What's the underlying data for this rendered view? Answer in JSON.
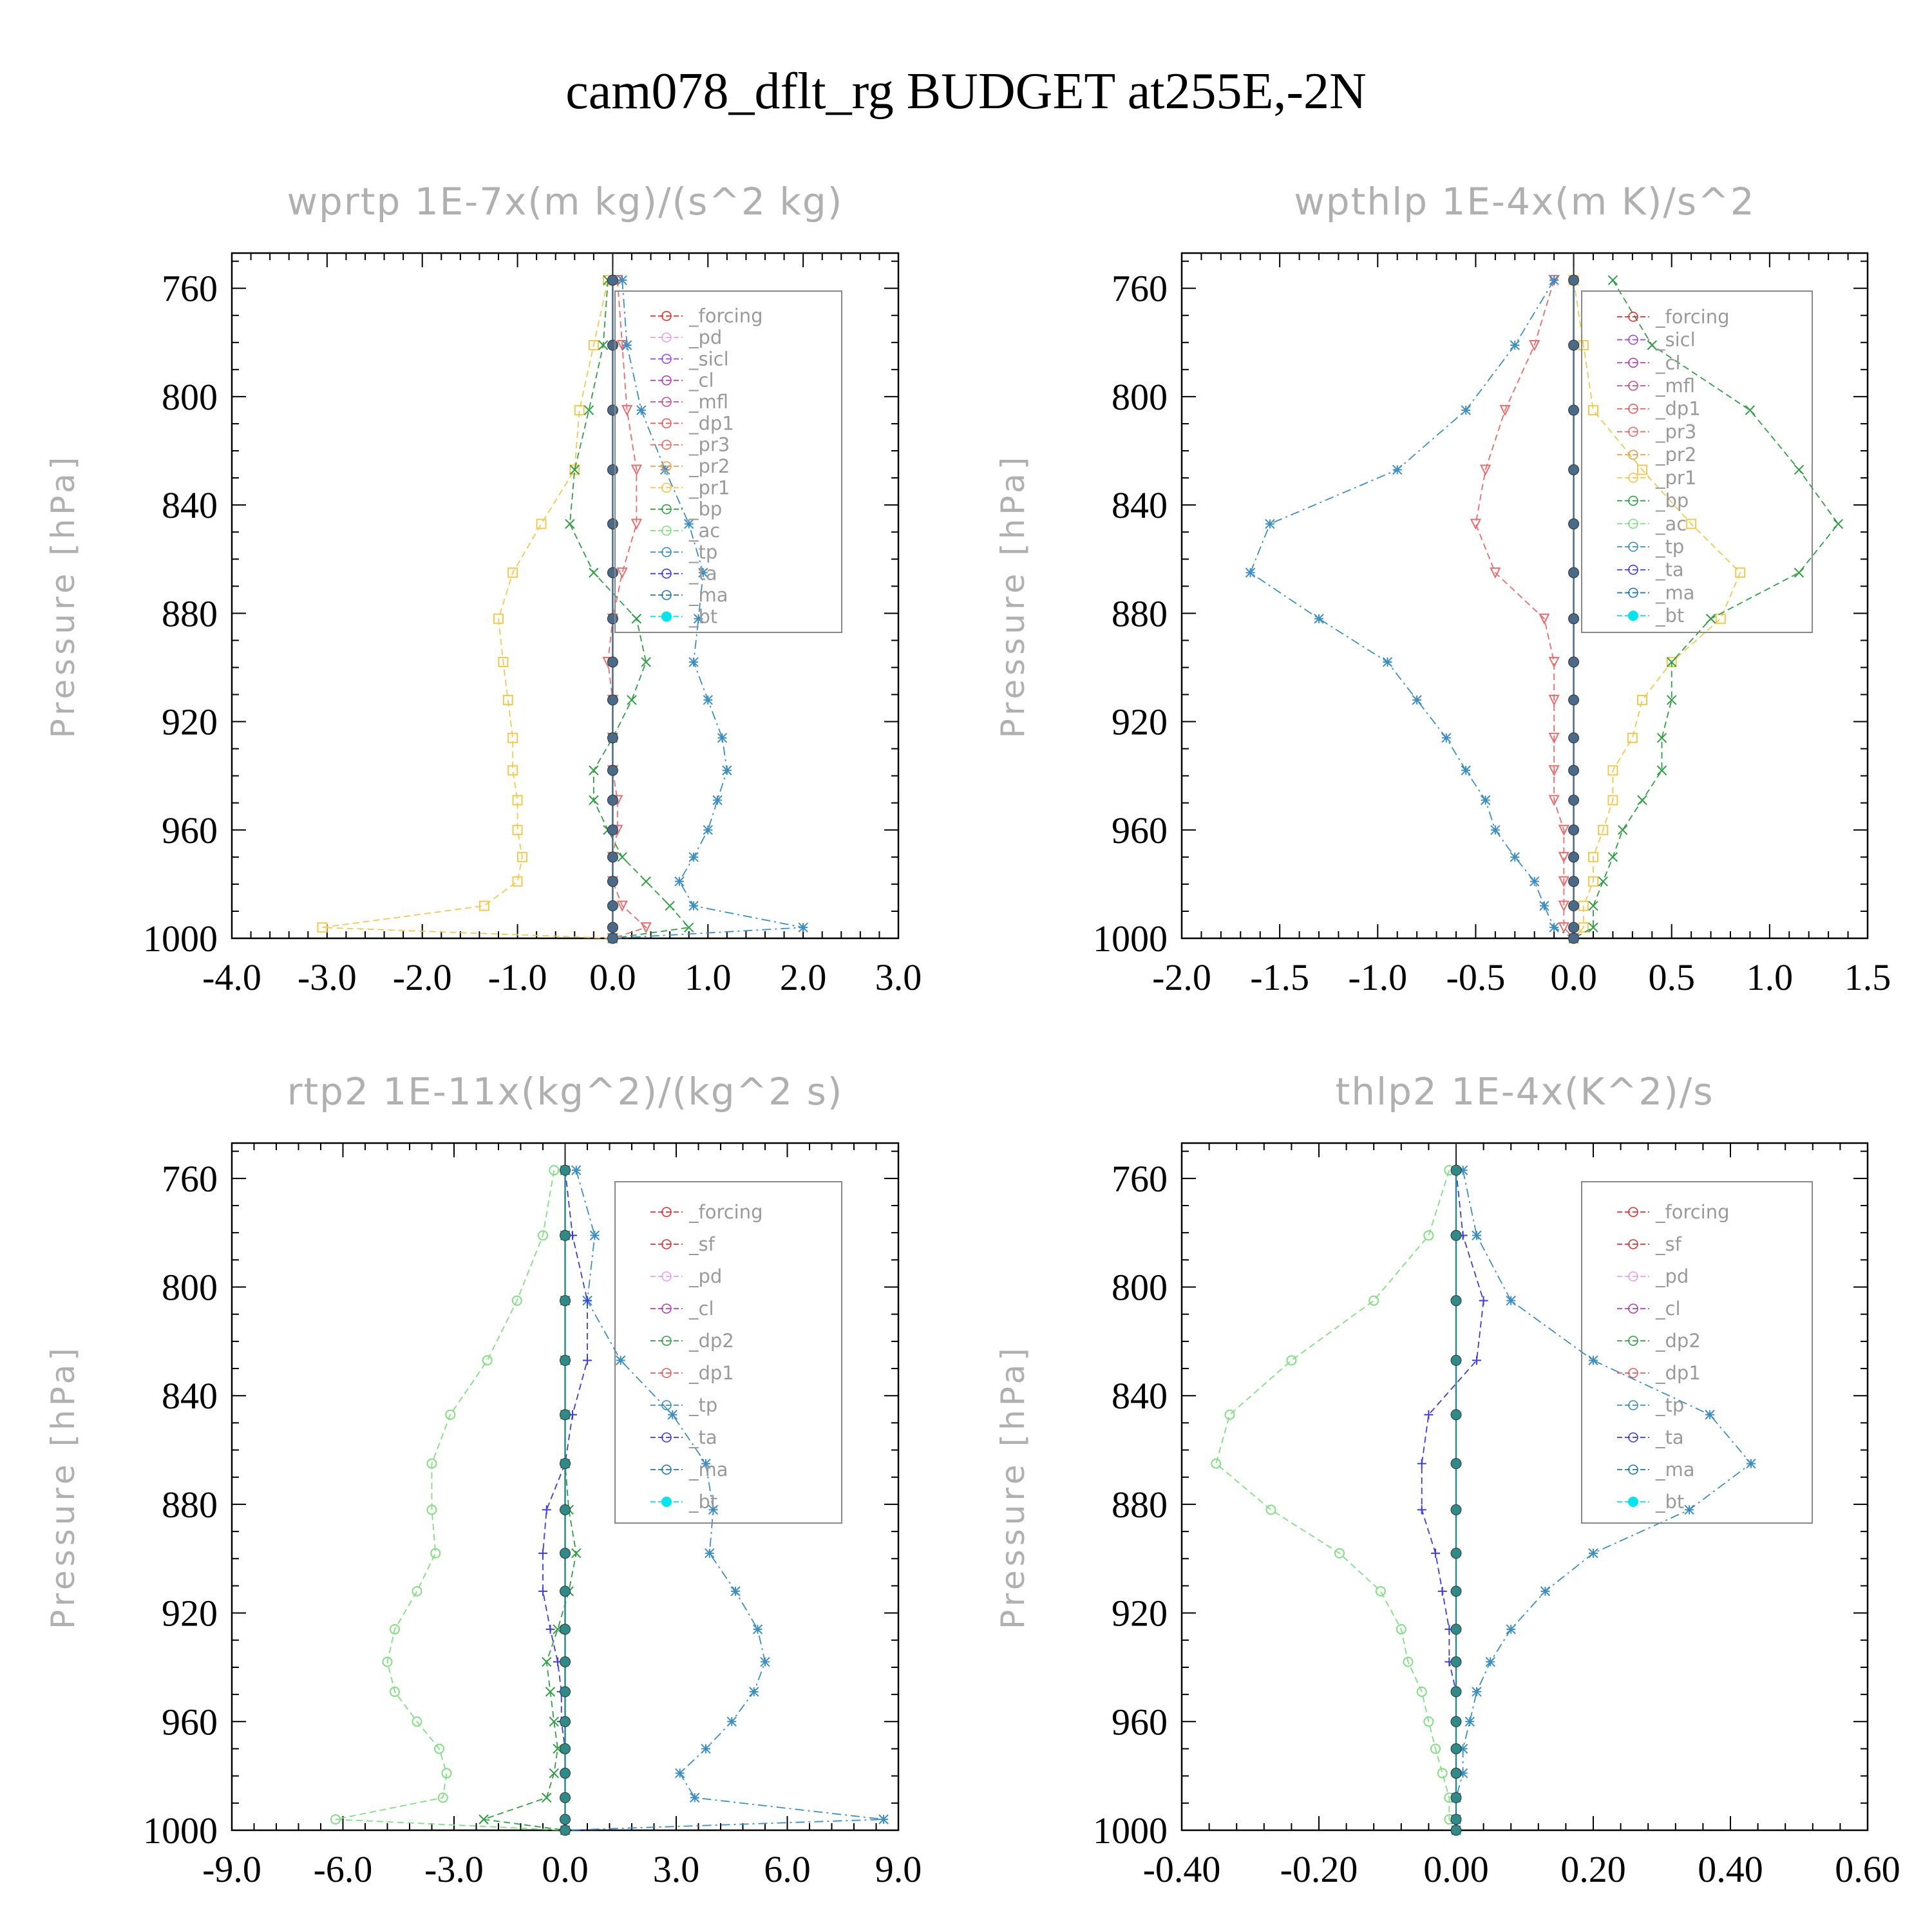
{
  "title": "cam078_dflt_rg  BUDGET at255E,-2N",
  "chart_data": [
    {
      "type": "line",
      "title": "wprtp  1E-7x(m kg)/(s^2 kg)",
      "ylabel": "Pressure [hPa]",
      "xlim": [
        -4.0,
        3.0
      ],
      "ylim": [
        1000,
        747
      ],
      "xticks": [
        "-4.0",
        "-3.0",
        "-2.0",
        "-1.0",
        "0.0",
        "1.0",
        "2.0",
        "3.0"
      ],
      "yticks": [
        "760",
        "800",
        "840",
        "880",
        "920",
        "960",
        "1000"
      ],
      "y": [
        757,
        781,
        805,
        827,
        847,
        865,
        882,
        898,
        912,
        926,
        938,
        949,
        960,
        970,
        979,
        988,
        996,
        1000
      ],
      "legend": [
        "_forcing",
        "_pd",
        "_sicl",
        "_cl",
        "_mfl",
        "_dp1",
        "_pr3",
        "_pr2",
        "_pr1",
        "_bp",
        "_ac",
        "_tp",
        "_ta",
        "_ma",
        "_bt"
      ],
      "series": [
        {
          "name": "_pr1",
          "color": "#f2c94c",
          "marker": "square",
          "values": [
            -0.05,
            -0.2,
            -0.35,
            -0.4,
            -0.75,
            -1.05,
            -1.2,
            -1.15,
            -1.1,
            -1.05,
            -1.05,
            -1.0,
            -1.0,
            -0.95,
            -1.0,
            -1.35,
            -3.05,
            0.0
          ]
        },
        {
          "name": "_pr3",
          "color": "#ef6a6a",
          "marker": "tri-down",
          "values": [
            0.05,
            0.1,
            0.15,
            0.25,
            0.25,
            0.1,
            0.0,
            -0.05,
            0.0,
            0.0,
            0.0,
            0.05,
            0.05,
            0.0,
            0.0,
            0.1,
            0.35,
            0.0
          ]
        },
        {
          "name": "_bp",
          "color": "#2ea043",
          "marker": "x",
          "values": [
            -0.05,
            -0.1,
            -0.25,
            -0.4,
            -0.45,
            -0.2,
            0.25,
            0.35,
            0.2,
            0.0,
            -0.2,
            -0.2,
            -0.05,
            0.1,
            0.35,
            0.6,
            0.8,
            0.0
          ]
        },
        {
          "name": "_tp",
          "color": "#3b8fc4",
          "marker": "asterisk",
          "values": [
            0.1,
            0.15,
            0.3,
            0.55,
            0.8,
            0.95,
            0.9,
            0.85,
            1.0,
            1.15,
            1.2,
            1.1,
            1.0,
            0.85,
            0.7,
            0.85,
            2.0,
            0.0
          ]
        },
        {
          "name": "_ta",
          "color": "#3a3aee",
          "marker": "plus",
          "values": [
            0.0,
            0.0,
            0.0,
            0.0,
            0.0,
            0.0,
            0.0,
            0.0,
            0.0,
            0.0,
            0.0,
            0.0,
            0.0,
            0.0,
            0.0,
            0.0,
            0.0,
            0.0
          ]
        },
        {
          "name": "_bt",
          "color": "#4a6a8a",
          "marker": "dot",
          "values": [
            0.0,
            0.0,
            0.0,
            0.0,
            0.0,
            0.0,
            0.0,
            0.0,
            0.0,
            0.0,
            0.0,
            0.0,
            0.0,
            0.0,
            0.0,
            0.0,
            0.0,
            0.0
          ]
        }
      ]
    },
    {
      "type": "line",
      "title": "wpthlp  1E-4x(m K)/s^2",
      "ylabel": "Pressure [hPa]",
      "xlim": [
        -2.0,
        1.5
      ],
      "ylim": [
        1000,
        747
      ],
      "xticks": [
        "-2.0",
        "-1.5",
        "-1.0",
        "-0.5",
        "0.0",
        "0.5",
        "1.0",
        "1.5"
      ],
      "yticks": [
        "760",
        "800",
        "840",
        "880",
        "920",
        "960",
        "1000"
      ],
      "y": [
        757,
        781,
        805,
        827,
        847,
        865,
        882,
        898,
        912,
        926,
        938,
        949,
        960,
        970,
        979,
        988,
        996,
        1000
      ],
      "legend": [
        "_forcing",
        "_sicl",
        "_cl",
        "_mfl",
        "_dp1",
        "_pr3",
        "_pr2",
        "_pr1",
        "_bp",
        "_ac",
        "_tp",
        "_ta",
        "_ma",
        "_bt"
      ],
      "series": [
        {
          "name": "_pr1",
          "color": "#f2c94c",
          "marker": "square",
          "values": [
            0.0,
            0.05,
            0.1,
            0.35,
            0.6,
            0.85,
            0.75,
            0.5,
            0.35,
            0.3,
            0.2,
            0.2,
            0.15,
            0.1,
            0.1,
            0.05,
            0.05,
            0.0
          ]
        },
        {
          "name": "_pr3",
          "color": "#ef6a6a",
          "marker": "tri-down",
          "values": [
            -0.1,
            -0.2,
            -0.35,
            -0.45,
            -0.5,
            -0.4,
            -0.15,
            -0.1,
            -0.1,
            -0.1,
            -0.1,
            -0.1,
            -0.05,
            -0.05,
            -0.05,
            -0.05,
            -0.05,
            0.0
          ]
        },
        {
          "name": "_bp",
          "color": "#2ea043",
          "marker": "x",
          "values": [
            0.2,
            0.4,
            0.9,
            1.15,
            1.35,
            1.15,
            0.7,
            0.5,
            0.5,
            0.45,
            0.45,
            0.35,
            0.25,
            0.2,
            0.15,
            0.1,
            0.1,
            0.0
          ]
        },
        {
          "name": "_tp",
          "color": "#3b8fc4",
          "marker": "asterisk",
          "values": [
            -0.1,
            -0.3,
            -0.55,
            -0.9,
            -1.55,
            -1.65,
            -1.3,
            -0.95,
            -0.8,
            -0.65,
            -0.55,
            -0.45,
            -0.4,
            -0.3,
            -0.2,
            -0.15,
            -0.1,
            0.0
          ]
        },
        {
          "name": "_ta",
          "color": "#3a3aee",
          "marker": "plus",
          "values": [
            0.0,
            0.0,
            0.0,
            0.0,
            0.0,
            0.0,
            0.0,
            0.0,
            0.0,
            0.0,
            0.0,
            0.0,
            0.0,
            0.0,
            0.0,
            0.0,
            0.0,
            0.0
          ]
        },
        {
          "name": "_bt",
          "color": "#4a6a8a",
          "marker": "dot",
          "values": [
            0.0,
            0.0,
            0.0,
            0.0,
            0.0,
            0.0,
            0.0,
            0.0,
            0.0,
            0.0,
            0.0,
            0.0,
            0.0,
            0.0,
            0.0,
            0.0,
            0.0,
            0.0
          ]
        }
      ]
    },
    {
      "type": "line",
      "title": "rtp2  1E-11x(kg^2)/(kg^2 s)",
      "ylabel": "Pressure [hPa]",
      "xlim": [
        -9.0,
        9.0
      ],
      "ylim": [
        1000,
        747
      ],
      "xticks": [
        "-9.0",
        "-6.0",
        "-3.0",
        "0.0",
        "3.0",
        "6.0",
        "9.0"
      ],
      "yticks": [
        "760",
        "800",
        "840",
        "880",
        "920",
        "960",
        "1000"
      ],
      "y": [
        757,
        781,
        805,
        827,
        847,
        865,
        882,
        898,
        912,
        926,
        938,
        949,
        960,
        970,
        979,
        988,
        996,
        1000
      ],
      "legend": [
        "_forcing",
        "_sf",
        "_pd",
        "_cl",
        "_dp2",
        "_dp1",
        "_tp",
        "_ta",
        "_ma",
        "_bt"
      ],
      "series": [
        {
          "name": "_dp1",
          "color": "#7fe07f",
          "marker": "circle",
          "values": [
            -0.3,
            -0.6,
            -1.3,
            -2.1,
            -3.1,
            -3.6,
            -3.6,
            -3.5,
            -4.0,
            -4.6,
            -4.8,
            -4.6,
            -4.0,
            -3.4,
            -3.2,
            -3.3,
            -6.2,
            0.0
          ]
        },
        {
          "name": "_dp2",
          "color": "#2ea043",
          "marker": "x",
          "values": [
            0.0,
            0.0,
            0.0,
            0.0,
            0.0,
            0.0,
            0.1,
            0.3,
            0.1,
            -0.2,
            -0.5,
            -0.4,
            -0.3,
            -0.2,
            -0.3,
            -0.5,
            -2.2,
            0.0
          ]
        },
        {
          "name": "_tp",
          "color": "#3b8fc4",
          "marker": "asterisk",
          "values": [
            0.3,
            0.8,
            0.6,
            1.5,
            2.9,
            3.8,
            4.0,
            3.9,
            4.6,
            5.2,
            5.4,
            5.1,
            4.5,
            3.8,
            3.1,
            3.5,
            8.6,
            0.0
          ]
        },
        {
          "name": "_ta",
          "color": "#3a3aee",
          "marker": "plus",
          "values": [
            0.0,
            0.2,
            0.6,
            0.6,
            0.2,
            0.0,
            -0.5,
            -0.6,
            -0.6,
            -0.4,
            -0.2,
            -0.1,
            -0.1,
            0.0,
            0.0,
            0.0,
            0.0,
            0.0
          ]
        },
        {
          "name": "_bt",
          "color": "#2e8b87",
          "marker": "dot",
          "values": [
            0.0,
            0.0,
            0.0,
            0.0,
            0.0,
            0.0,
            0.0,
            0.0,
            0.0,
            0.0,
            0.0,
            0.0,
            0.0,
            0.0,
            0.0,
            0.0,
            0.0,
            0.0
          ]
        }
      ]
    },
    {
      "type": "line",
      "title": "thlp2  1E-4x(K^2)/s",
      "ylabel": "Pressure [hPa]",
      "xlim": [
        -0.4,
        0.6
      ],
      "ylim": [
        1000,
        747
      ],
      "xticks": [
        "-0.40",
        "-0.20",
        "0.00",
        "0.20",
        "0.40",
        "0.60"
      ],
      "yticks": [
        "760",
        "800",
        "840",
        "880",
        "920",
        "960",
        "1000"
      ],
      "y": [
        757,
        781,
        805,
        827,
        847,
        865,
        882,
        898,
        912,
        926,
        938,
        949,
        960,
        970,
        979,
        988,
        996,
        1000
      ],
      "legend": [
        "_forcing",
        "_sf",
        "_pd",
        "_cl",
        "_dp2",
        "_dp1",
        "_tp",
        "_ta",
        "_ma",
        "_bt"
      ],
      "series": [
        {
          "name": "_dp1",
          "color": "#7fe07f",
          "marker": "circle",
          "values": [
            -0.01,
            -0.04,
            -0.12,
            -0.24,
            -0.33,
            -0.35,
            -0.27,
            -0.17,
            -0.11,
            -0.08,
            -0.07,
            -0.05,
            -0.04,
            -0.03,
            -0.02,
            -0.01,
            -0.01,
            0.0
          ]
        },
        {
          "name": "_tp",
          "color": "#3b8fc4",
          "marker": "asterisk",
          "values": [
            0.01,
            0.03,
            0.08,
            0.2,
            0.37,
            0.43,
            0.34,
            0.2,
            0.13,
            0.08,
            0.05,
            0.03,
            0.02,
            0.01,
            0.01,
            0.0,
            0.0,
            0.0
          ]
        },
        {
          "name": "_ta",
          "color": "#3a3aee",
          "marker": "plus",
          "values": [
            0.0,
            0.01,
            0.04,
            0.03,
            -0.04,
            -0.05,
            -0.05,
            -0.03,
            -0.02,
            -0.01,
            -0.01,
            0.0,
            0.0,
            0.0,
            0.0,
            0.0,
            0.0,
            0.0
          ]
        },
        {
          "name": "_bt",
          "color": "#2e8b87",
          "marker": "dot",
          "values": [
            0.0,
            0.0,
            0.0,
            0.0,
            0.0,
            0.0,
            0.0,
            0.0,
            0.0,
            0.0,
            0.0,
            0.0,
            0.0,
            0.0,
            0.0,
            0.0,
            0.0,
            0.0
          ]
        }
      ]
    }
  ]
}
